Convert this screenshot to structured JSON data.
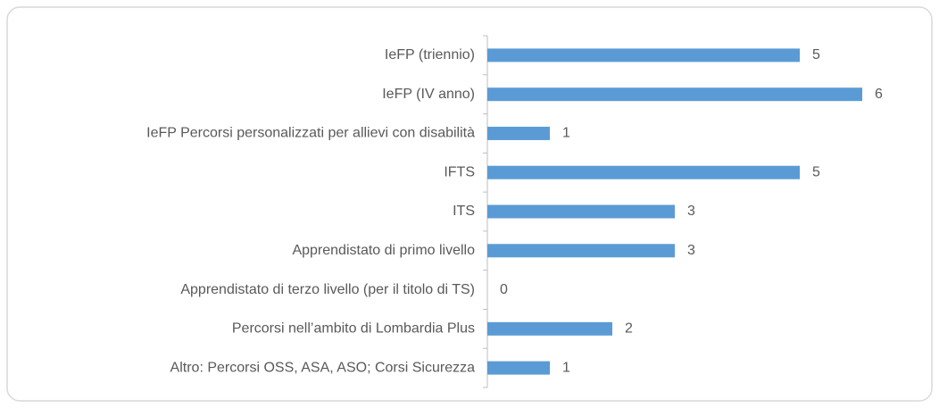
{
  "chart_data": {
    "type": "bar",
    "orientation": "horizontal",
    "categories": [
      "IeFP (triennio)",
      "IeFP (IV anno)",
      "IeFP Percorsi personalizzati per allievi con disabilità",
      "IFTS",
      "ITS",
      "Apprendistato di primo livello",
      "Apprendistato di terzo livello (per il titolo di TS)",
      "Percorsi nell’ambito di Lombardia Plus",
      "Altro: Percorsi OSS, ASA, ASO; Corsi Sicurezza"
    ],
    "values": [
      5,
      6,
      1,
      5,
      3,
      3,
      0,
      2,
      1
    ],
    "color": "#5b9bd5"
  }
}
